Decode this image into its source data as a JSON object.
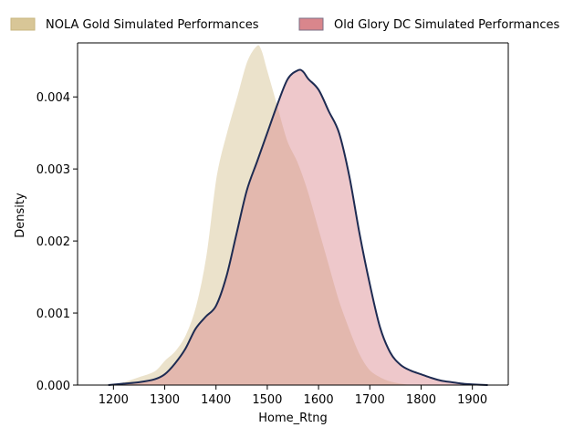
{
  "chart_data": {
    "type": "area",
    "xlabel": "Home_Rtng",
    "ylabel": "Density",
    "xlim": [
      1130,
      1970
    ],
    "ylim": [
      0,
      0.00475
    ],
    "x_ticks": [
      1200,
      1300,
      1400,
      1500,
      1600,
      1700,
      1800,
      1900
    ],
    "y_ticks": [
      0.0,
      0.001,
      0.002,
      0.003,
      0.004
    ],
    "y_tick_labels": [
      "0.000",
      "0.001",
      "0.002",
      "0.003",
      "0.004"
    ],
    "legend_position": "top",
    "series": [
      {
        "name": "NOLA Gold Simulated Performances",
        "fill_color": "#d8c697",
        "fill_opacity": 0.5,
        "line_color": "#ffffff",
        "x": [
          1190,
          1220,
          1250,
          1280,
          1300,
          1320,
          1340,
          1360,
          1380,
          1400,
          1420,
          1440,
          1460,
          1480,
          1490,
          1500,
          1520,
          1540,
          1560,
          1580,
          1600,
          1620,
          1640,
          1660,
          1680,
          1700,
          1720,
          1740,
          1760,
          1780,
          1800,
          1820
        ],
        "y": [
          0.0,
          5e-05,
          0.00012,
          0.0002,
          0.00035,
          0.00048,
          0.0007,
          0.0011,
          0.0018,
          0.0029,
          0.0035,
          0.004,
          0.0045,
          0.00472,
          0.00465,
          0.0044,
          0.0039,
          0.0034,
          0.0031,
          0.0027,
          0.0022,
          0.0017,
          0.0012,
          0.0008,
          0.00045,
          0.00022,
          0.00012,
          6e-05,
          3e-05,
          1e-05,
          0.0,
          0.0
        ]
      },
      {
        "name": "Old Glory DC Simulated Performances",
        "fill_color": "#d9868c",
        "fill_opacity": 0.45,
        "line_color": "#1e2b52",
        "x": [
          1190,
          1220,
          1250,
          1280,
          1300,
          1320,
          1340,
          1360,
          1380,
          1400,
          1420,
          1440,
          1460,
          1480,
          1500,
          1520,
          1540,
          1560,
          1570,
          1580,
          1600,
          1620,
          1640,
          1660,
          1680,
          1700,
          1720,
          1740,
          1760,
          1780,
          1800,
          1820,
          1840,
          1860,
          1880,
          1900,
          1930
        ],
        "y": [
          0.0,
          2e-05,
          4e-05,
          8e-05,
          0.00015,
          0.0003,
          0.0005,
          0.00078,
          0.00095,
          0.0011,
          0.0015,
          0.0021,
          0.0027,
          0.0031,
          0.0035,
          0.0039,
          0.00425,
          0.00437,
          0.00435,
          0.00425,
          0.0041,
          0.0038,
          0.0035,
          0.0029,
          0.0021,
          0.0014,
          0.0008,
          0.00045,
          0.00028,
          0.0002,
          0.00015,
          0.0001,
          6e-05,
          4e-05,
          2e-05,
          1e-05,
          0.0
        ]
      }
    ]
  }
}
